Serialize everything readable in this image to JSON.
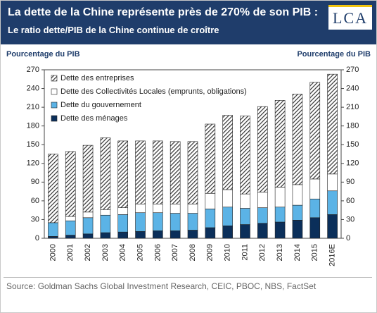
{
  "header": {
    "title": "La dette de la Chine représente près de 270% de son PIB :",
    "subtitle": "Le ratio dette/PIB de la Chine continue de croître",
    "logo": "LCA"
  },
  "chart_data": {
    "type": "stacked_bar",
    "ylabel": "Pourcentage du PIB",
    "y2label": "Pourcentage du PIB",
    "categories": [
      "2000",
      "2001",
      "2002",
      "2003",
      "2004",
      "2005",
      "2006",
      "2007",
      "2008",
      "2009",
      "2010",
      "2011",
      "2012",
      "2013",
      "2014",
      "2015",
      "2016E"
    ],
    "series": [
      {
        "name": "Dette des ménages",
        "color": "#0b2f5a",
        "values": [
          3,
          5,
          7,
          9,
          10,
          11,
          12,
          12,
          13,
          17,
          20,
          22,
          24,
          26,
          29,
          33,
          38
        ]
      },
      {
        "name": "Dette du gouvernement",
        "color": "#5bb3e6",
        "values": [
          22,
          23,
          26,
          28,
          28,
          30,
          29,
          28,
          27,
          30,
          30,
          26,
          25,
          24,
          24,
          30,
          38
        ]
      },
      {
        "name": "Dette des Collectivités Locales (emprunts, obligations)",
        "color": "#ffffff",
        "values": [
          0,
          7,
          9,
          9,
          11,
          14,
          14,
          15,
          15,
          25,
          28,
          23,
          25,
          32,
          33,
          32,
          27
        ]
      },
      {
        "name": "Dette des entreprises",
        "color": "#3a3a3a",
        "hatch": true,
        "values": [
          110,
          104,
          107,
          115,
          107,
          101,
          101,
          100,
          100,
          111,
          119,
          125,
          137,
          139,
          145,
          155,
          160
        ]
      }
    ],
    "ylim": [
      0,
      270
    ],
    "yticks": [
      0,
      30,
      60,
      90,
      120,
      150,
      180,
      210,
      240,
      270
    ],
    "source": "Source: Goldman Sachs Global Investment Research, CEIC, PBOC, NBS, FactSet"
  }
}
